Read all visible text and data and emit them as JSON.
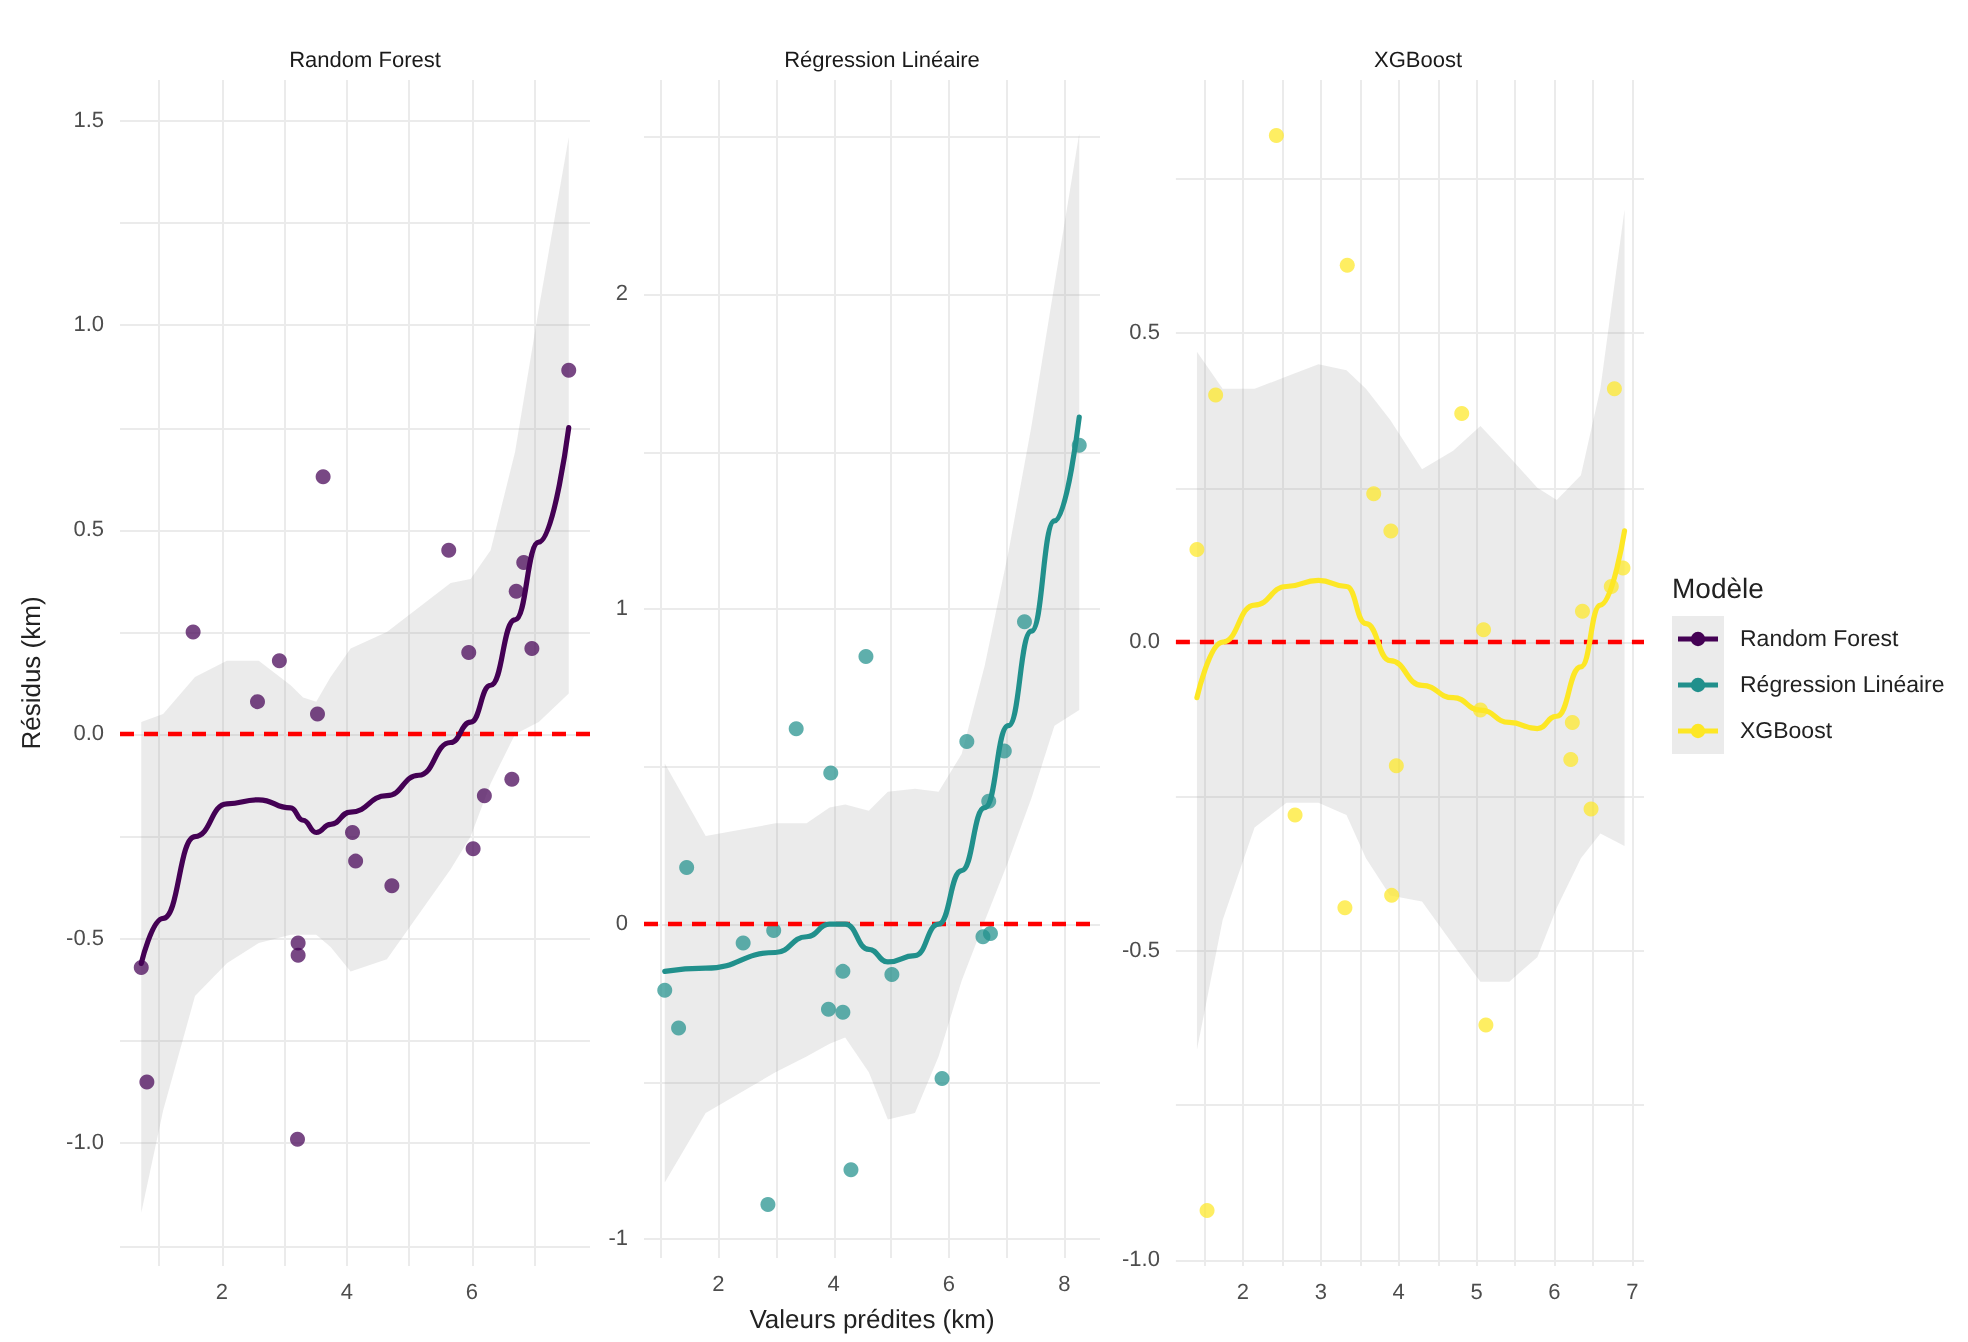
{
  "chart_data": [
    {
      "type": "scatter",
      "title": "Random Forest",
      "ylabel": "Résidus (km)",
      "grid": true,
      "legend": "right",
      "xlim": [
        0.37,
        7.89
      ],
      "ylim": [
        -1.3,
        1.6
      ],
      "xticks": [
        {
          "value": 1,
          "label": null
        },
        2,
        {
          "value": 3,
          "label": null
        },
        4,
        {
          "value": 5,
          "label": null
        },
        6,
        {
          "value": 7,
          "label": null
        }
      ],
      "yticks": [
        {
          "value": -1.25,
          "label": null
        },
        {
          "value": -1,
          "label": "-1.0"
        },
        {
          "value": -0.75,
          "label": null
        },
        {
          "value": -0.5,
          "label": "-0.5"
        },
        {
          "value": -0.25,
          "label": null
        },
        {
          "value": 0,
          "label": "0.0"
        },
        {
          "value": 0.25,
          "label": null
        },
        {
          "value": 0.5,
          "label": "0.5"
        },
        {
          "value": 0.75,
          "label": null
        },
        {
          "value": 1,
          "label": "1.0"
        },
        {
          "value": 1.25,
          "label": null
        },
        {
          "value": 1.5,
          "label": "1.5"
        }
      ],
      "ref_lines": [
        {
          "axis": "y",
          "value": 0,
          "color": "#ff0000",
          "line_style": "dashed"
        }
      ],
      "series": [
        {
          "marker": "circle",
          "color": "#440154",
          "x": [
            0.71,
            0.8,
            1.54,
            2.57,
            2.92,
            3.22,
            3.22,
            3.21,
            3.53,
            3.62,
            4.09,
            4.14,
            4.72,
            5.63,
            5.95,
            6.02,
            6.2,
            6.64,
            6.71,
            6.83,
            6.96,
            7.55
          ],
          "values": [
            -0.57,
            -0.85,
            0.25,
            0.08,
            0.18,
            -0.51,
            -0.54,
            -0.99,
            0.05,
            0.63,
            -0.24,
            -0.31,
            -0.37,
            0.45,
            0.2,
            -0.28,
            -0.15,
            -0.11,
            0.35,
            0.42,
            0.21,
            0.89
          ]
        },
        {
          "type": "line",
          "name": "Random Forest",
          "marker": "none",
          "color": "#440154",
          "x": [
            0.71,
            1.06,
            1.57,
            2.08,
            2.59,
            3.1,
            3.3,
            3.51,
            3.74,
            4.06,
            4.64,
            5.15,
            5.66,
            5.98,
            6.3,
            6.69,
            7.07,
            7.55
          ],
          "values": [
            -0.56,
            -0.45,
            -0.25,
            -0.17,
            -0.16,
            -0.18,
            -0.21,
            -0.24,
            -0.22,
            -0.19,
            -0.15,
            -0.1,
            -0.02,
            0.03,
            0.12,
            0.28,
            0.47,
            0.75
          ],
          "lower": [
            -1.17,
            -0.92,
            -0.64,
            -0.56,
            -0.51,
            -0.49,
            -0.49,
            -0.49,
            -0.52,
            -0.58,
            -0.55,
            -0.44,
            -0.33,
            -0.25,
            -0.12,
            0.0,
            0.03,
            0.1
          ],
          "upper": [
            0.03,
            0.05,
            0.14,
            0.18,
            0.18,
            0.12,
            0.09,
            0.08,
            0.14,
            0.21,
            0.25,
            0.31,
            0.37,
            0.38,
            0.45,
            0.69,
            1.04,
            1.46
          ]
        }
      ]
    },
    {
      "type": "scatter",
      "title": "Régression Linéaire",
      "xlabel": "Valeurs prédites (km)",
      "grid": true,
      "legend": "right",
      "xlim": [
        0.71,
        8.62
      ],
      "ylim": [
        -1.06,
        2.68
      ],
      "xticks": [
        {
          "value": 1,
          "label": null
        },
        2,
        {
          "value": 3,
          "label": null
        },
        4,
        {
          "value": 5,
          "label": null
        },
        6,
        {
          "value": 7,
          "label": null
        },
        8
      ],
      "yticks": [
        -1,
        {
          "value": -0.5,
          "label": null
        },
        0,
        {
          "value": 0.5,
          "label": null
        },
        1,
        {
          "value": 1.5,
          "label": null
        },
        2,
        {
          "value": 2.5,
          "label": null
        }
      ],
      "ref_lines": [
        {
          "axis": "y",
          "value": 0,
          "color": "#ff0000",
          "line_style": "dashed"
        }
      ],
      "series": [
        {
          "marker": "circle",
          "color": "#21908c",
          "x": [
            1.07,
            1.31,
            1.45,
            2.43,
            2.86,
            2.96,
            3.35,
            3.91,
            3.95,
            4.16,
            4.16,
            4.3,
            4.56,
            5.01,
            5.88,
            6.31,
            6.59,
            6.69,
            6.72,
            6.96,
            7.31,
            8.26
          ],
          "values": [
            -0.21,
            -0.33,
            0.18,
            -0.06,
            -0.89,
            -0.02,
            0.62,
            -0.27,
            0.48,
            -0.15,
            -0.28,
            -0.78,
            0.85,
            -0.16,
            -0.49,
            0.58,
            -0.04,
            0.39,
            -0.03,
            0.55,
            0.96,
            1.52
          ]
        },
        {
          "type": "line",
          "name": "Régression Linéaire",
          "marker": "none",
          "color": "#21908c",
          "x": [
            1.07,
            1.78,
            2.99,
            3.53,
            3.93,
            4.2,
            4.61,
            4.94,
            5.41,
            5.82,
            6.22,
            6.62,
            7.03,
            7.43,
            7.83,
            8.26
          ],
          "values": [
            -0.15,
            -0.14,
            -0.09,
            -0.04,
            0.0,
            0.0,
            -0.08,
            -0.12,
            -0.1,
            0.0,
            0.17,
            0.37,
            0.63,
            0.93,
            1.28,
            1.61
          ],
          "lower": [
            -0.82,
            -0.6,
            -0.47,
            -0.42,
            -0.38,
            -0.36,
            -0.47,
            -0.62,
            -0.6,
            -0.42,
            -0.18,
            0.01,
            0.2,
            0.4,
            0.63,
            0.68
          ],
          "upper": [
            0.51,
            0.28,
            0.32,
            0.32,
            0.37,
            0.38,
            0.36,
            0.42,
            0.43,
            0.42,
            0.54,
            0.82,
            1.18,
            1.58,
            2.03,
            2.51
          ]
        }
      ]
    },
    {
      "type": "scatter",
      "title": "XGBoost",
      "legend_title": "Modèle",
      "grid": true,
      "legend": "right",
      "xlim": [
        1.14,
        7.15
      ],
      "ylim": [
        -1.01,
        0.91
      ],
      "xticks": [
        {
          "value": 1.5,
          "label": null
        },
        2,
        {
          "value": 2.5,
          "label": null
        },
        3,
        {
          "value": 3.5,
          "label": null
        },
        4,
        {
          "value": 4.5,
          "label": null
        },
        5,
        {
          "value": 5.5,
          "label": null
        },
        6,
        {
          "value": 6.5,
          "label": null
        },
        7
      ],
      "yticks": [
        {
          "value": -1,
          "label": "-1.0"
        },
        {
          "value": -0.75,
          "label": null
        },
        {
          "value": -0.5,
          "label": "-0.5"
        },
        {
          "value": -0.25,
          "label": null
        },
        {
          "value": 0,
          "label": "0.0"
        },
        {
          "value": 0.25,
          "label": null
        },
        {
          "value": 0.5,
          "label": "0.5"
        },
        {
          "value": 0.75,
          "label": null
        }
      ],
      "ref_lines": [
        {
          "axis": "y",
          "value": 0,
          "color": "#ff0000",
          "line_style": "dashed"
        }
      ],
      "series": [
        {
          "marker": "circle",
          "color": "#fde725",
          "x": [
            1.41,
            1.54,
            1.65,
            2.43,
            2.67,
            3.31,
            3.34,
            3.68,
            3.9,
            3.91,
            3.97,
            4.81,
            5.05,
            5.09,
            5.12,
            6.21,
            6.23,
            6.36,
            6.47,
            6.73,
            6.77,
            6.88
          ],
          "values": [
            0.15,
            -0.92,
            0.4,
            0.82,
            -0.28,
            -0.43,
            0.61,
            0.24,
            0.18,
            -0.41,
            -0.2,
            0.37,
            -0.11,
            0.02,
            -0.62,
            -0.19,
            -0.13,
            0.05,
            -0.27,
            0.09,
            0.41,
            0.12
          ]
        },
        {
          "type": "line",
          "name": "XGBoost",
          "marker": "none",
          "color": "#fde725",
          "x": [
            1.41,
            1.74,
            2.15,
            2.56,
            2.97,
            3.33,
            3.58,
            3.89,
            4.3,
            4.7,
            5.05,
            5.42,
            5.78,
            6.03,
            6.34,
            6.59,
            6.9
          ],
          "values": [
            -0.09,
            0.0,
            0.06,
            0.09,
            0.1,
            0.09,
            0.03,
            -0.03,
            -0.07,
            -0.09,
            -0.11,
            -0.13,
            -0.14,
            -0.12,
            -0.04,
            0.06,
            0.18
          ],
          "lower": [
            -0.66,
            -0.45,
            -0.3,
            -0.26,
            -0.26,
            -0.28,
            -0.35,
            -0.41,
            -0.42,
            -0.49,
            -0.55,
            -0.55,
            -0.51,
            -0.43,
            -0.35,
            -0.31,
            -0.33
          ],
          "upper": [
            0.47,
            0.41,
            0.41,
            0.43,
            0.45,
            0.44,
            0.41,
            0.36,
            0.28,
            0.31,
            0.35,
            0.3,
            0.25,
            0.23,
            0.27,
            0.41,
            0.7
          ]
        }
      ]
    }
  ]
}
